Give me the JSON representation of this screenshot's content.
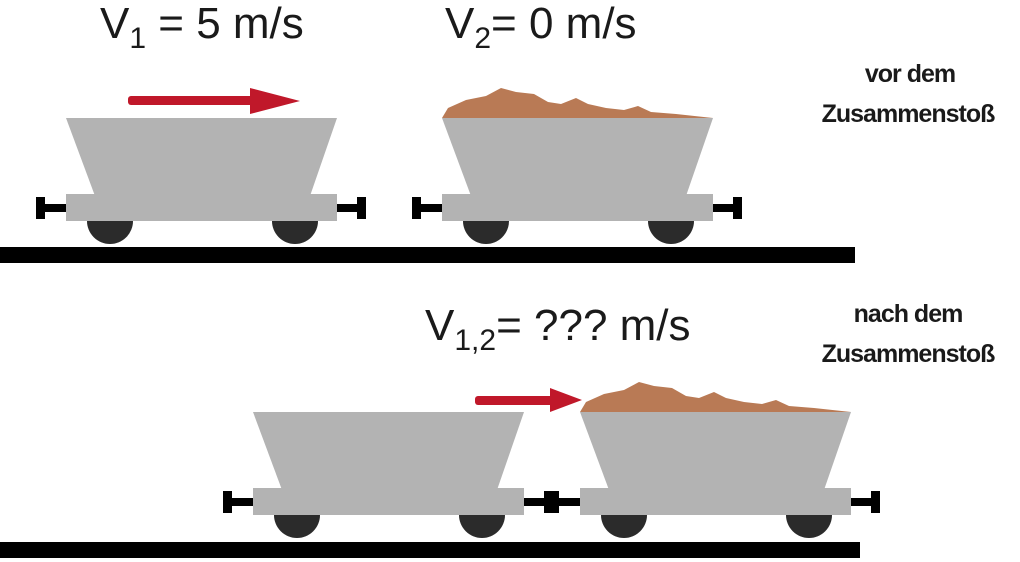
{
  "before": {
    "v1_symbol": "V",
    "v1_index": "1",
    "v1_value": " = 5 m/s",
    "v2_symbol": "V",
    "v2_index": "2",
    "v2_value": "= 0 m/s",
    "label_line1": "vor dem",
    "label_line2": "Zusammenstoß"
  },
  "after": {
    "v12_symbol": "V",
    "v12_index": "1,2",
    "v12_value": "= ??? m/s",
    "label_line1": "nach dem",
    "label_line2": "Zusammenstoß"
  },
  "colors": {
    "wagon": "#b3b3b3",
    "wheel": "#2b2b2b",
    "rail": "#000000",
    "arrow": "#c0182a",
    "load": "#b97a55"
  }
}
